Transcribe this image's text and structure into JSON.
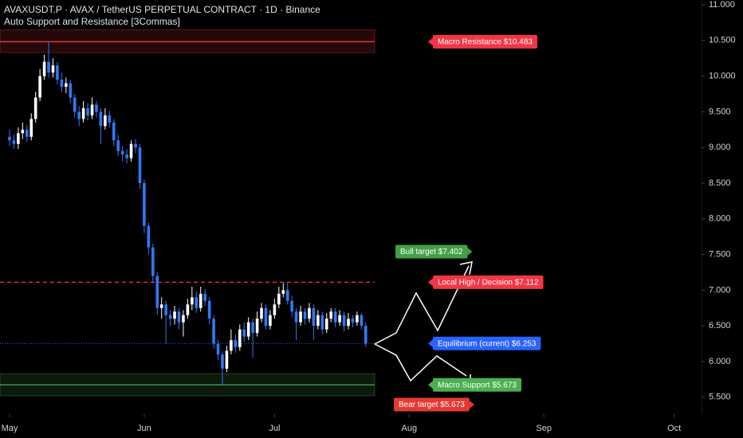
{
  "chart_data": {
    "type": "candlestick",
    "title": "AVAXUSDT.P · AVAX / TetherUS PERPETUAL CONTRACT · 1D · Binance",
    "subtitle": "Auto Support and Resistance [3Commas]",
    "xlim": [
      -2.2,
      159.3
    ],
    "xticks": [
      {
        "value": 0,
        "label": "May"
      },
      {
        "value": 31,
        "label": "Jun"
      },
      {
        "value": 61,
        "label": "Jul"
      },
      {
        "value": 92,
        "label": "Aug"
      },
      {
        "value": 123,
        "label": "Sep"
      },
      {
        "value": 153,
        "label": "Oct"
      }
    ],
    "ylim": [
      5.263,
      11.067
    ],
    "yticks": [
      {
        "value": 5.5,
        "label": "5.500"
      },
      {
        "value": 6,
        "label": "6.000"
      },
      {
        "value": 6.5,
        "label": "6.500"
      },
      {
        "value": 7,
        "label": "7.000"
      },
      {
        "value": 7.5,
        "label": "7.500"
      },
      {
        "value": 8,
        "label": "8.000"
      },
      {
        "value": 8.5,
        "label": "8.500"
      },
      {
        "value": 9,
        "label": "9.000"
      },
      {
        "value": 9.5,
        "label": "9.500"
      },
      {
        "value": 10,
        "label": "10.000"
      },
      {
        "value": 10.5,
        "label": "10.500"
      },
      {
        "value": 11,
        "label": "11.000"
      }
    ],
    "up_color": "#ffffff",
    "down_color": "#3179f5",
    "open": [
      9.15,
      9.1,
      9.05,
      9.2,
      9.25,
      9.15,
      9.4,
      9.7,
      10.0,
      10.2,
      10.05,
      10.15,
      9.95,
      9.85,
      9.9,
      9.7,
      9.5,
      9.4,
      9.55,
      9.45,
      9.6,
      9.5,
      9.3,
      9.45,
      9.35,
      9.1,
      8.95,
      8.9,
      8.85,
      9.05,
      9.0,
      8.5,
      7.9,
      7.6,
      7.2,
      6.75,
      6.8,
      6.65,
      6.6,
      6.7,
      6.55,
      6.65,
      6.8,
      6.9,
      6.75,
      6.95,
      6.85,
      6.6,
      6.25,
      6.1,
      5.9,
      6.15,
      6.3,
      6.2,
      6.45,
      6.35,
      6.55,
      6.4,
      6.6,
      6.75,
      6.5,
      6.65,
      6.8,
      6.95,
      7.0,
      6.85,
      6.7,
      6.55,
      6.7,
      6.6,
      6.75,
      6.5,
      6.65,
      6.45,
      6.6,
      6.7,
      6.55,
      6.65,
      6.5,
      6.6,
      6.55,
      6.65,
      6.5
    ],
    "close": [
      9.1,
      9.05,
      9.2,
      9.25,
      9.15,
      9.4,
      9.7,
      10.0,
      10.2,
      10.05,
      10.15,
      9.95,
      9.85,
      9.9,
      9.7,
      9.5,
      9.4,
      9.55,
      9.45,
      9.6,
      9.5,
      9.3,
      9.45,
      9.35,
      9.1,
      8.95,
      8.9,
      8.85,
      9.05,
      9.0,
      8.5,
      7.9,
      7.6,
      7.2,
      6.75,
      6.8,
      6.65,
      6.6,
      6.7,
      6.55,
      6.65,
      6.8,
      6.9,
      6.75,
      6.95,
      6.85,
      6.6,
      6.25,
      6.1,
      5.9,
      6.15,
      6.3,
      6.2,
      6.45,
      6.35,
      6.55,
      6.4,
      6.6,
      6.75,
      6.5,
      6.65,
      6.8,
      6.95,
      7.0,
      6.85,
      6.7,
      6.55,
      6.7,
      6.6,
      6.75,
      6.5,
      6.65,
      6.45,
      6.6,
      6.7,
      6.55,
      6.65,
      6.5,
      6.6,
      6.55,
      6.65,
      6.5,
      6.25
    ],
    "high": [
      9.25,
      9.18,
      9.28,
      9.35,
      9.32,
      9.48,
      9.78,
      10.1,
      10.3,
      10.48,
      10.25,
      10.2,
      10.05,
      9.98,
      9.95,
      9.75,
      9.58,
      9.65,
      9.62,
      9.7,
      9.65,
      9.55,
      9.55,
      9.52,
      9.4,
      9.18,
      9.02,
      8.98,
      9.1,
      9.12,
      9.05,
      8.55,
      7.95,
      7.65,
      7.25,
      6.9,
      6.85,
      6.72,
      6.78,
      6.75,
      6.72,
      6.88,
      7.05,
      6.98,
      7.05,
      7.02,
      6.9,
      6.65,
      6.3,
      6.15,
      6.22,
      6.45,
      6.38,
      6.52,
      6.55,
      6.62,
      6.6,
      6.7,
      6.82,
      6.8,
      6.72,
      6.88,
      7.05,
      7.1,
      7.1,
      6.92,
      6.75,
      6.78,
      6.75,
      6.82,
      6.8,
      6.72,
      6.7,
      6.68,
      6.75,
      6.75,
      6.72,
      6.7,
      6.68,
      6.65,
      6.7,
      6.68,
      6.55
    ],
    "low": [
      9.02,
      8.98,
      8.98,
      9.12,
      9.08,
      9.1,
      9.35,
      9.65,
      9.95,
      9.98,
      9.98,
      9.88,
      9.78,
      9.76,
      9.62,
      9.42,
      9.3,
      9.35,
      9.38,
      9.4,
      9.42,
      9.05,
      9.25,
      9.28,
      9.02,
      8.88,
      8.8,
      8.78,
      8.8,
      8.92,
      8.42,
      7.8,
      7.5,
      7.1,
      6.65,
      6.6,
      6.25,
      6.5,
      6.52,
      6.45,
      6.35,
      6.6,
      6.72,
      6.68,
      6.7,
      6.78,
      6.52,
      6.18,
      6.02,
      5.67,
      5.85,
      6.1,
      6.12,
      6.15,
      6.28,
      6.3,
      6.05,
      6.35,
      6.55,
      6.45,
      6.45,
      6.6,
      6.75,
      6.9,
      6.8,
      6.62,
      6.3,
      6.5,
      6.52,
      6.55,
      6.3,
      6.45,
      6.38,
      6.4,
      6.55,
      6.48,
      6.5,
      6.42,
      6.45,
      6.48,
      6.5,
      6.45,
      6.2
    ],
    "levels": [
      {
        "value": 10.483,
        "label": "Macro Resistance $10.483",
        "color": "#f23645",
        "style": "solid",
        "band": [
          10.33,
          10.65
        ]
      },
      {
        "value": 7.112,
        "label": "Local High / Decision $7.112",
        "color": "#f23645",
        "style": "dashed"
      },
      {
        "value": 6.253,
        "label": "Equilibrium (current) $6.253",
        "color": "#2962ff",
        "style": "dotted"
      },
      {
        "value": 5.673,
        "label": "Macro Support $5.673",
        "color": "#4caf50",
        "style": "solid",
        "band": [
          5.52,
          5.83
        ]
      }
    ],
    "targets": [
      {
        "value": 7.402,
        "label": "Bull target $7.402",
        "color": "#43a047"
      },
      {
        "value": 5.673,
        "label": "Bear target $5.673",
        "color": "#e53935"
      }
    ]
  }
}
